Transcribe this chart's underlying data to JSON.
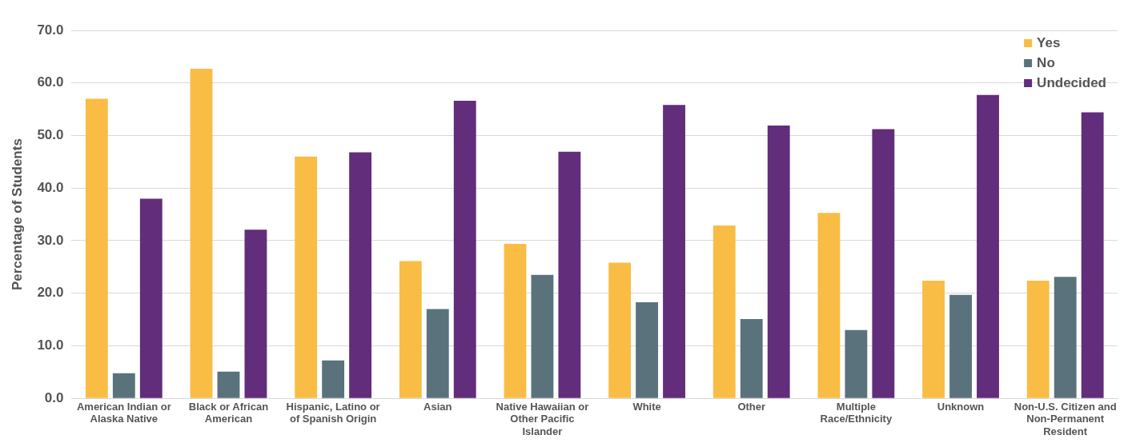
{
  "chart_data": {
    "type": "bar",
    "ylabel": "Percentage of Students",
    "categories": [
      "American Indian or Alaska Native",
      "Black or African American",
      "Hispanic, Latino or of Spanish Origin",
      "Asian",
      "Native Hawaiian or Other Pacific Islander",
      "White",
      "Other",
      "Multiple Race/Ethnicity",
      "Unknown",
      "Non-U.S. Citizen and Non-Permanent Resident"
    ],
    "series": [
      {
        "name": "Yes",
        "color": "#f9bd45",
        "values": [
          57.0,
          62.7,
          46.0,
          26.1,
          29.4,
          25.8,
          32.9,
          35.3,
          22.4,
          22.4
        ]
      },
      {
        "name": "No",
        "color": "#5a727c",
        "values": [
          4.8,
          5.1,
          7.2,
          17.0,
          23.5,
          18.3,
          15.1,
          13.0,
          19.7,
          23.1
        ]
      },
      {
        "name": "Undecided",
        "color": "#622d7a",
        "values": [
          38.0,
          32.1,
          46.8,
          56.6,
          46.9,
          55.8,
          51.9,
          51.2,
          57.7,
          54.4
        ]
      }
    ],
    "ylim": [
      0,
      70
    ],
    "yticks": [
      {
        "value": 0,
        "label": "0.0"
      },
      {
        "value": 10,
        "label": "10.0"
      },
      {
        "value": 20,
        "label": "20.0"
      },
      {
        "value": 30,
        "label": "30.0"
      },
      {
        "value": 40,
        "label": "40.0"
      },
      {
        "value": 50,
        "label": "50.0"
      },
      {
        "value": 60,
        "label": "60.0"
      },
      {
        "value": 70,
        "label": "70.0"
      }
    ],
    "grid": "y",
    "legend": "top right"
  }
}
